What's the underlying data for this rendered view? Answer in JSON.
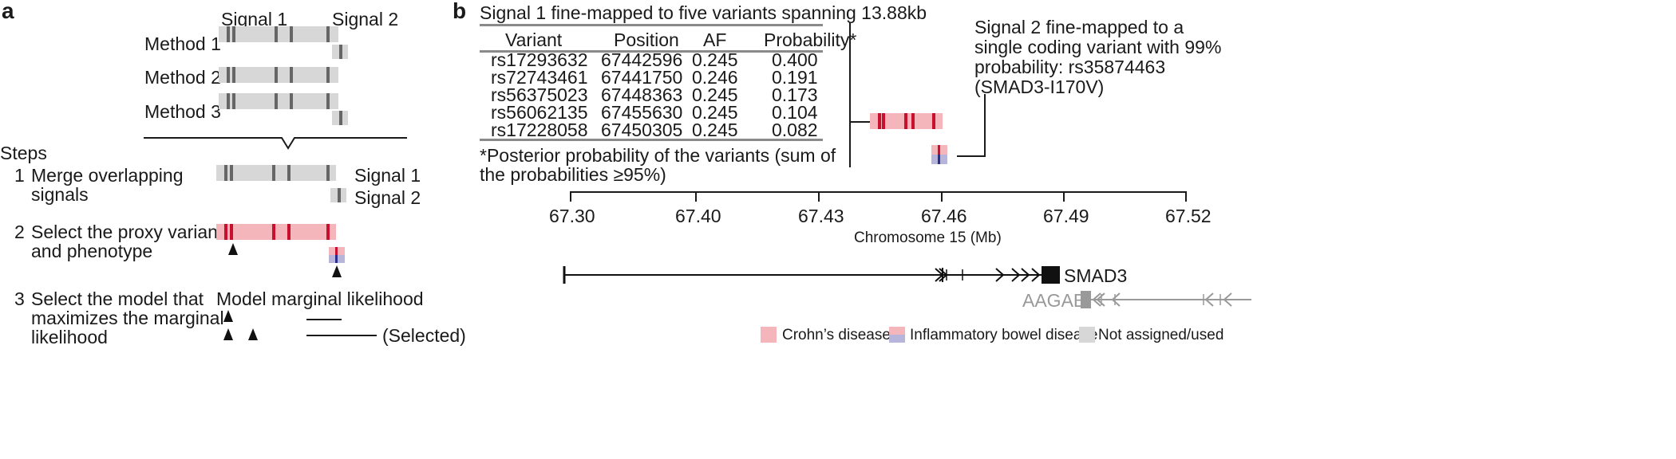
{
  "panel_a": {
    "label": "a",
    "signal1": "Signal 1",
    "signal2": "Signal 2",
    "methods": [
      "Method 1",
      "Method 2",
      "Method 3"
    ],
    "steps_title": "Steps",
    "steps": [
      {
        "num": "1",
        "line1": "Merge overlapping",
        "line2": "signals"
      },
      {
        "num": "2",
        "line1": "Select the proxy variant",
        "line2": "and phenotype"
      },
      {
        "num": "3",
        "line1": "Select the model that",
        "line2": "maximizes the marginal",
        "line3": "likelihood"
      }
    ],
    "merged_signal1": "Signal 1",
    "merged_signal2": "Signal 2",
    "model_header": "Model marginal likelihood",
    "selected": "(Selected)"
  },
  "panel_b": {
    "label": "b",
    "table_title": "Signal 1 fine-mapped to five variants spanning 13.88kb",
    "columns": [
      "Variant",
      "Position",
      "AF",
      "Probability*"
    ],
    "rows": [
      [
        "rs17293632",
        "67442596",
        "0.245",
        "0.400"
      ],
      [
        "rs72743461",
        "67441750",
        "0.246",
        "0.191"
      ],
      [
        "rs56375023",
        "67448363",
        "0.245",
        "0.173"
      ],
      [
        "rs56062135",
        "67455630",
        "0.245",
        "0.104"
      ],
      [
        "rs17228058",
        "67450305",
        "0.245",
        "0.082"
      ]
    ],
    "footnote_line1": "*Posterior probability of the variants (sum of",
    "footnote_line2": "the probabilities ≥95%)",
    "signal2_note": [
      "Signal 2 fine-mapped to a",
      "single coding variant with 99%",
      "probability: rs35874463",
      "(SMAD3-I170V)"
    ],
    "axis_ticks": [
      "67.30",
      "67.40",
      "67.43",
      "67.46",
      "67.49",
      "67.52"
    ],
    "axis_label": "Chromosome 15 (Mb)",
    "genes": [
      "SMAD3",
      "AAGAB"
    ],
    "legend": [
      "Crohn’s disease",
      "Inflammatory bowel disease",
      "Not assigned/used"
    ]
  },
  "colors": {
    "crohns": "#f4b6bb",
    "ibd": "#b7b6da",
    "unassigned": "#d7d7d7",
    "variant_red": "#c8102e",
    "variant_blue": "#2a2f8a",
    "gene_gray": "#999999"
  }
}
